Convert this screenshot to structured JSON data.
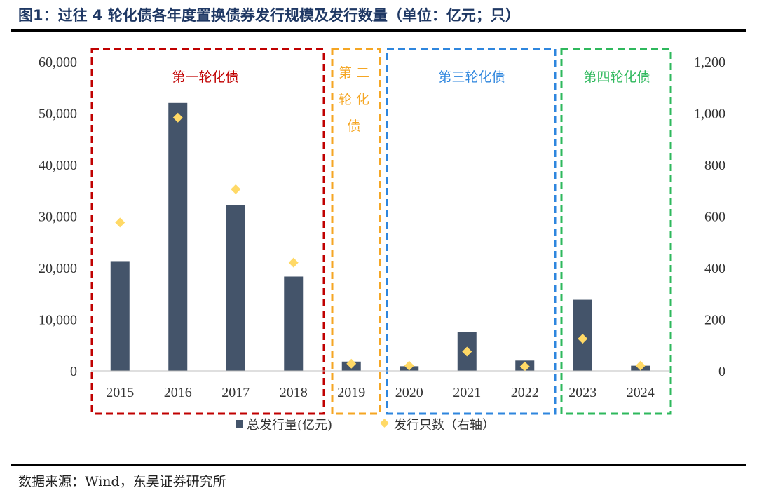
{
  "title": "图1：过往 4 轮化债各年度置换债券发行规模及发行数量（单位：亿元；只）",
  "source": "数据来源：Wind，东吴证券研究所",
  "colors": {
    "bar": "#44546a",
    "diamond": "#ffd966",
    "zone1": "#c00000",
    "zone2": "#f5a623",
    "zone3": "#2e86de",
    "zone4": "#2eb85c"
  },
  "chart_data": {
    "type": "bar",
    "categories": [
      "2015",
      "2016",
      "2017",
      "2018",
      "2019",
      "2020",
      "2021",
      "2022",
      "2023",
      "2024"
    ],
    "series": [
      {
        "name": "总发行量(亿元)",
        "type": "bar",
        "axis": "left",
        "values": [
          21300,
          52000,
          32200,
          18300,
          1800,
          900,
          7600,
          2000,
          13800,
          1000
        ]
      },
      {
        "name": "发行只数（右轴）",
        "type": "scatter",
        "marker": "diamond",
        "axis": "right",
        "values": [
          576,
          983,
          705,
          420,
          28,
          20,
          75,
          17,
          125,
          20
        ]
      }
    ],
    "ylim": [
      0,
      60000
    ],
    "y2lim": [
      0,
      1200
    ],
    "yticks": [
      "0",
      "10,000",
      "20,000",
      "30,000",
      "40,000",
      "50,000",
      "60,000"
    ],
    "y2ticks": [
      "0",
      "200",
      "400",
      "600",
      "800",
      "1,000",
      "1,200"
    ],
    "zones": [
      {
        "label": "第一轮化债",
        "color_key": "zone1",
        "from": 0,
        "to": 3
      },
      {
        "label": "第二轮化债",
        "color_key": "zone2",
        "from": 4,
        "to": 4
      },
      {
        "label": "第三轮化债",
        "color_key": "zone3",
        "from": 5,
        "to": 7
      },
      {
        "label": "第四轮化债",
        "color_key": "zone4",
        "from": 8,
        "to": 9
      }
    ],
    "legend_position": "bottom",
    "grid": false
  }
}
